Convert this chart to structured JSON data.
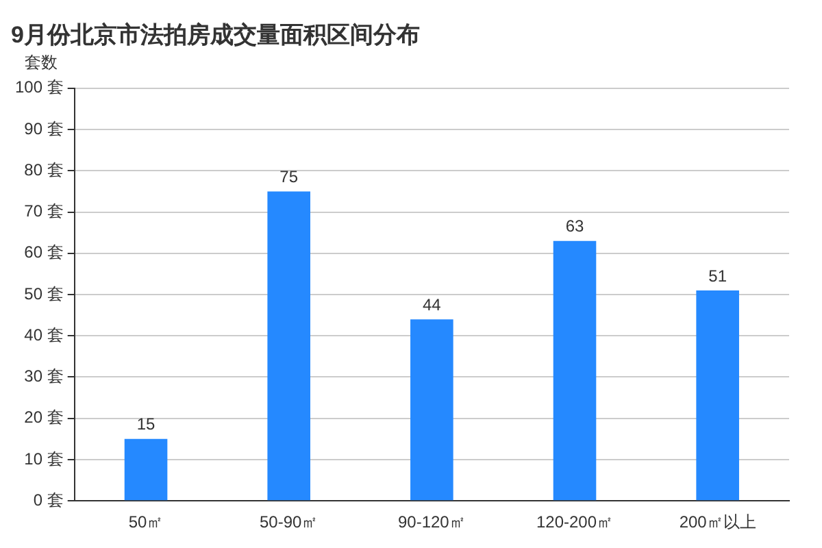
{
  "chart_data": {
    "type": "bar",
    "title": "9月份北京市法拍房成交量面积区间分布",
    "ylabel": "套数",
    "categories": [
      "50㎡",
      "50-90㎡",
      "90-120㎡",
      "120-200㎡",
      "200㎡以上"
    ],
    "values": [
      15,
      75,
      44,
      63,
      51
    ],
    "color": "#2589ff",
    "data_labels": true,
    "grid": "y",
    "legend": false,
    "ylim": [
      0,
      100
    ],
    "yticks": [
      {
        "value": 0,
        "label": "0 套"
      },
      {
        "value": 10,
        "label": "10 套"
      },
      {
        "value": 20,
        "label": "20 套"
      },
      {
        "value": 30,
        "label": "30 套"
      },
      {
        "value": 40,
        "label": "40 套"
      },
      {
        "value": 50,
        "label": "50 套"
      },
      {
        "value": 60,
        "label": "60 套"
      },
      {
        "value": 70,
        "label": "70 套"
      },
      {
        "value": 80,
        "label": "80 套"
      },
      {
        "value": 90,
        "label": "90 套"
      },
      {
        "value": 100,
        "label": "100 套"
      }
    ]
  }
}
